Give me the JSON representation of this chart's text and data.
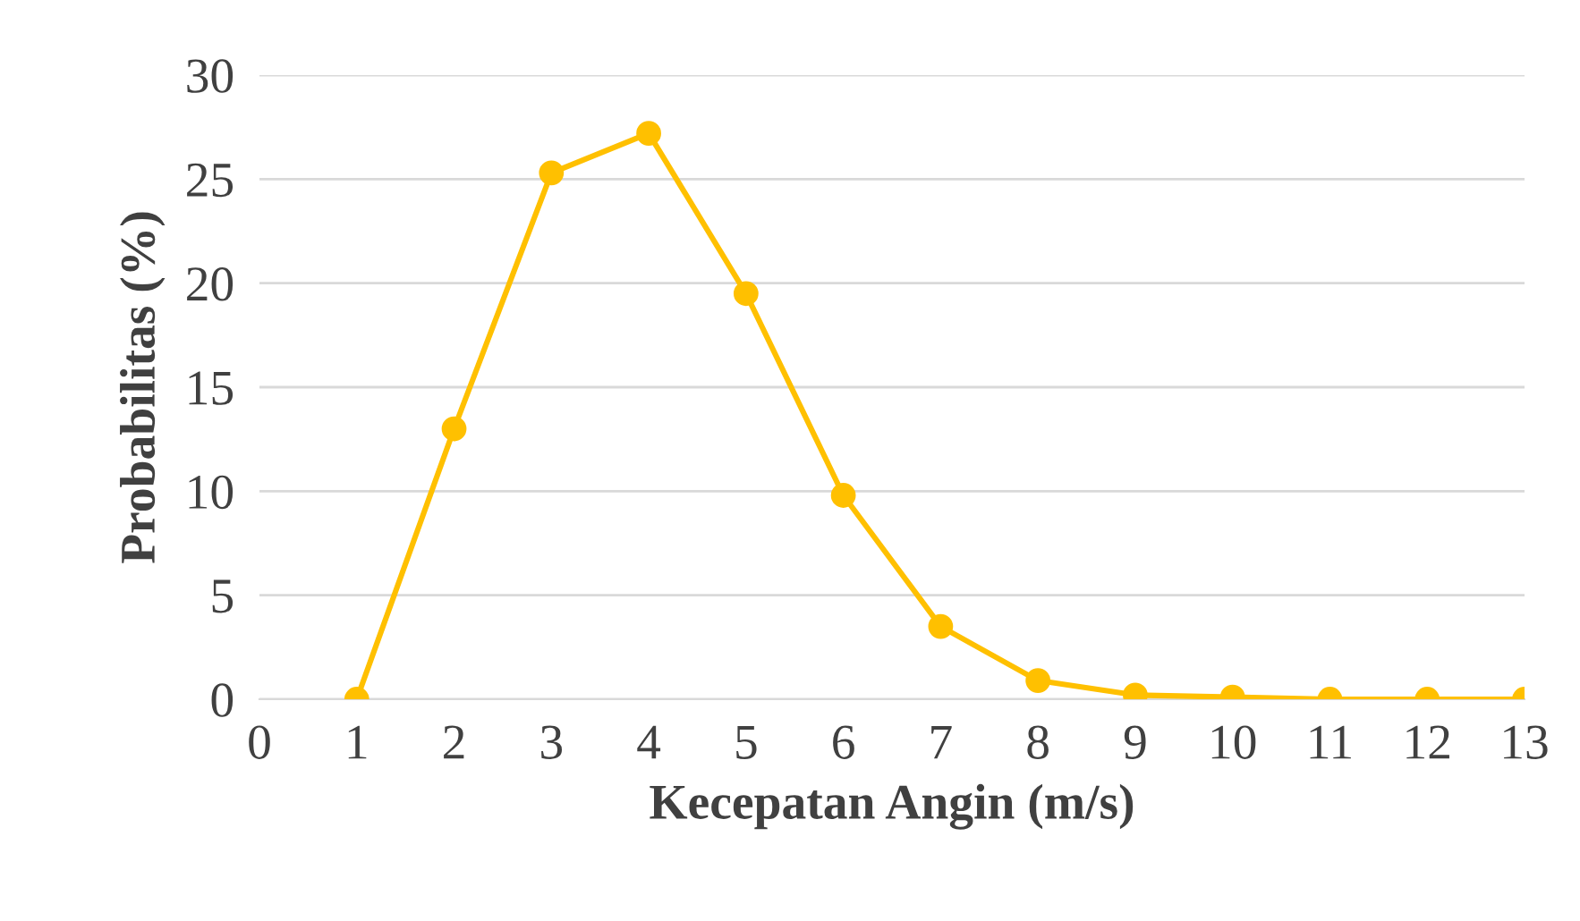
{
  "chart_data": {
    "type": "line",
    "xlabel": "Kecepatan Angin (m/s)",
    "ylabel": "Probabilitas (%)",
    "x": [
      1,
      2,
      3,
      4,
      5,
      6,
      7,
      8,
      9,
      10,
      11,
      12,
      13
    ],
    "series": [
      {
        "color": "#ffc000",
        "values": [
          0,
          13,
          25.3,
          27.2,
          19.5,
          9.8,
          3.5,
          0.9,
          0.2,
          0.1,
          0,
          0,
          0
        ]
      }
    ],
    "xlim": [
      0,
      13
    ],
    "xticks": [
      0,
      1,
      2,
      3,
      4,
      5,
      6,
      7,
      8,
      9,
      10,
      11,
      12,
      13
    ],
    "ylim": [
      0,
      30
    ],
    "yticks": [
      0,
      5,
      10,
      15,
      20,
      25,
      30
    ],
    "grid": "y",
    "marker": "circle",
    "line_style": "solid"
  }
}
